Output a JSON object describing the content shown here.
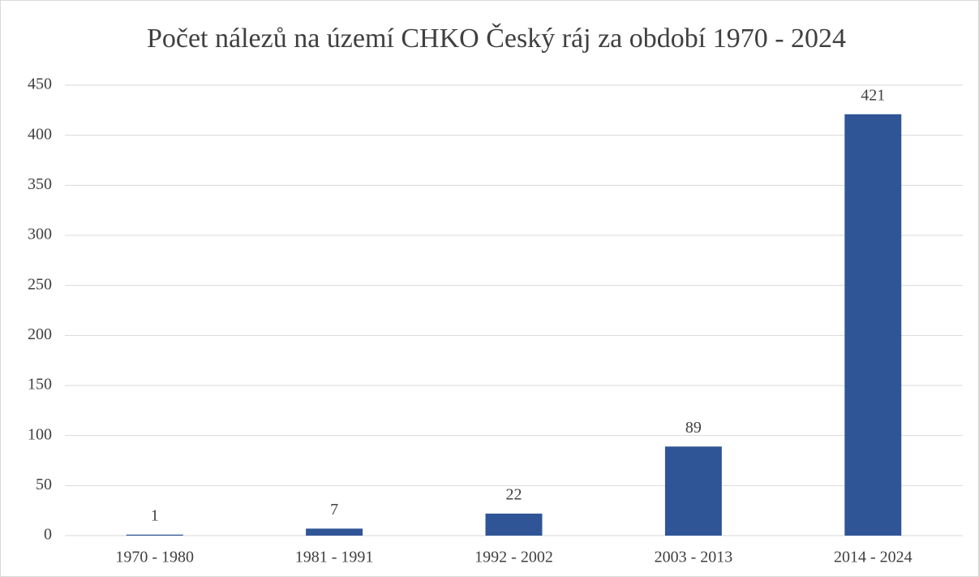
{
  "chart_data": {
    "type": "bar",
    "title": "Počet nálezů na území CHKO Český ráj za období 1970 - 2024",
    "categories": [
      "1970 - 1980",
      "1981 - 1991",
      "1992 - 2002",
      "2003 - 2013",
      "2014 - 2024"
    ],
    "values": [
      1,
      7,
      22,
      89,
      421
    ],
    "color": "#2f5597",
    "ylim": [
      0,
      450
    ],
    "yticks": [
      0,
      50,
      100,
      150,
      200,
      250,
      300,
      350,
      400,
      450
    ],
    "grid": true
  }
}
